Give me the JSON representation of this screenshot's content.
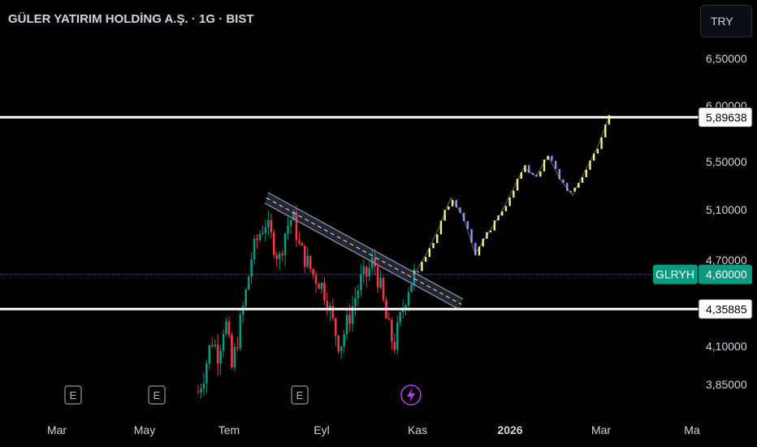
{
  "header": {
    "title": "GÜLER YATIRIM HOLDİNG A.Ş. · 1G · BIST",
    "currency": "TRY"
  },
  "colors": {
    "up": "#089981",
    "down": "#f23645",
    "proj_up": "#f4f28a",
    "proj_down": "#8e8ef2",
    "level": "#ffffff",
    "tag": "#089981",
    "channel": "#9598a1",
    "event": "#b044e0"
  },
  "chart_data": {
    "type": "candlestick",
    "title": "GÜLER YATIRIM HOLDİNG A.Ş. · 1G · BIST",
    "ylim": [
      3.75,
      6.7
    ],
    "y_ticks": [
      "6,50000",
      "6,00000",
      "5,50000",
      "5,10000",
      "4,70000",
      "4,10000",
      "3,85000"
    ],
    "x_ticks": [
      "Mar",
      "May",
      "Tem",
      "Eyl",
      "Kas",
      "2026",
      "Mar",
      "Ma"
    ],
    "levels": [
      {
        "label": "5,89638",
        "value": 5.89638
      },
      {
        "label": "4,35885",
        "value": 4.35885
      }
    ],
    "current_price": {
      "symbol": "GLRYH",
      "label": "4,60000",
      "value": 4.6
    },
    "events": [
      {
        "type": "earnings",
        "label": "E",
        "x": "Mar"
      },
      {
        "type": "earnings",
        "label": "E",
        "x": "May"
      },
      {
        "type": "earnings",
        "label": "E",
        "x": "Eyl"
      },
      {
        "type": "dividend",
        "label": "⚡",
        "x": "Kas"
      }
    ],
    "price_path": [
      3.8,
      3.95,
      4.15,
      4.05,
      4.3,
      3.95,
      4.2,
      4.45,
      4.75,
      4.9,
      5.0,
      4.85,
      4.7,
      4.95,
      5.05,
      4.8,
      4.7,
      4.6,
      4.55,
      4.45,
      4.25,
      4.1,
      4.25,
      4.4,
      4.55,
      4.6,
      4.7,
      4.5,
      4.25,
      4.1,
      4.3,
      4.5,
      4.6
    ],
    "projection_path": [
      4.6,
      4.75,
      4.95,
      5.2,
      5.05,
      4.75,
      4.9,
      5.05,
      5.25,
      5.45,
      5.38,
      5.55,
      5.35,
      5.22,
      5.42,
      5.62,
      5.9
    ]
  }
}
